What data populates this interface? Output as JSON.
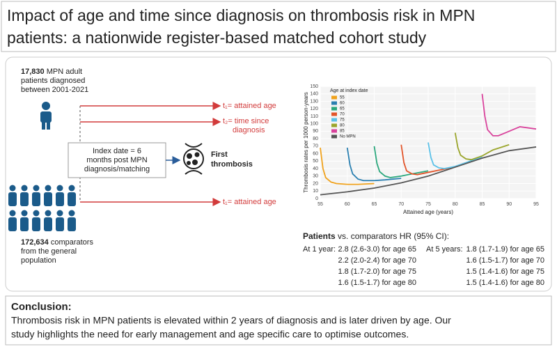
{
  "title": [
    "Impact of age and time since diagnosis on thrombosis risk in MPN",
    "patients: a nationwide register-based matched cohort study"
  ],
  "cohort": {
    "patients_count": "17,830",
    "patients_text": [
      "MPN adult",
      "patients diagnosed",
      "between 2001-2021"
    ],
    "comparators_count": "172,634",
    "comparators_text": [
      "comparators",
      "from the general",
      "population"
    ]
  },
  "timescales": {
    "top": "t₁= attained age",
    "middle": [
      "t₂= time since",
      "diagnosis"
    ],
    "bottom": "t₁= attained age"
  },
  "index_box": [
    "Index date = 6",
    "months post MPN",
    "diagnosis/matching"
  ],
  "outcome": [
    "First",
    "thrombosis"
  ],
  "chart_data": {
    "type": "line",
    "xlabel": "Attained age (years)",
    "ylabel": "Thrombosis rates per 1000 person-years",
    "xlim": [
      55,
      95
    ],
    "xticks": [
      55,
      60,
      65,
      70,
      75,
      80,
      85,
      90,
      95
    ],
    "ylim": [
      0,
      150
    ],
    "yticks": [
      0,
      10,
      20,
      30,
      40,
      50,
      60,
      70,
      80,
      90,
      100,
      110,
      120,
      130,
      140,
      150
    ],
    "grid": true,
    "legend_title": "Age at index date",
    "legend": "upper left",
    "series": [
      {
        "name": "55",
        "color": "#f0a21c",
        "x": [
          55,
          55.5,
          56,
          57,
          58,
          60,
          62,
          65
        ],
        "values": [
          68,
          40,
          28,
          22,
          20,
          19,
          19,
          20
        ]
      },
      {
        "name": "60",
        "color": "#2a7fb0",
        "x": [
          60,
          60.5,
          61,
          62,
          63,
          65,
          67,
          70
        ],
        "values": [
          68,
          45,
          33,
          26,
          24,
          24,
          25,
          27
        ]
      },
      {
        "name": "65",
        "color": "#2aa77c",
        "x": [
          65,
          65.5,
          66,
          67,
          68,
          70,
          72,
          75
        ],
        "values": [
          70,
          47,
          36,
          30,
          28,
          30,
          33,
          37
        ]
      },
      {
        "name": "70",
        "color": "#e2552b",
        "x": [
          70,
          70.5,
          71,
          72,
          73,
          75,
          77,
          80
        ],
        "values": [
          72,
          48,
          37,
          33,
          32,
          35,
          38,
          42
        ]
      },
      {
        "name": "75",
        "color": "#5bc1e8",
        "x": [
          75,
          75.5,
          76,
          77,
          78,
          80,
          82,
          85
        ],
        "values": [
          75,
          55,
          45,
          41,
          40,
          43,
          48,
          56
        ]
      },
      {
        "name": "80",
        "color": "#9aa52b",
        "x": [
          80,
          80.5,
          81,
          82,
          83,
          85,
          87,
          90
        ],
        "values": [
          88,
          68,
          58,
          53,
          52,
          57,
          65,
          72
        ]
      },
      {
        "name": "85",
        "color": "#d9439c",
        "x": [
          85,
          85.5,
          86,
          87,
          88,
          90,
          92,
          95
        ],
        "values": [
          140,
          110,
          92,
          84,
          84,
          90,
          96,
          93
        ]
      },
      {
        "name": "No MPN",
        "color": "#555555",
        "x": [
          55,
          60,
          65,
          70,
          75,
          80,
          85,
          90,
          95
        ],
        "values": [
          5,
          9,
          14,
          21,
          30,
          42,
          54,
          64,
          69
        ]
      }
    ]
  },
  "hr": {
    "heading_bold": "Patients",
    "heading": "vs. comparators HR (95% CI):",
    "columns": [
      {
        "label": "At 1 year:",
        "rows": [
          "2.8 (2.6-3.0) for age 65",
          "2.2 (2.0-2.4) for age 70",
          "1.8 (1.7-2.0) for age 75",
          "1.6 (1.5-1.7) for age 80"
        ]
      },
      {
        "label": "At 5 years:",
        "rows": [
          "1.8 (1.7-1.9) for age 65",
          "1.6 (1.5-1.7) for age 70",
          "1.5 (1.4-1.6) for age 75",
          "1.5 (1.4-1.6) for age 80"
        ]
      }
    ]
  },
  "conclusion": {
    "heading": "Conclusion:",
    "text": [
      "Thrombosis risk in MPN patients is elevated within 2 years of diagnosis and is later driven by age. Our",
      "study highlights the need for early management and age specific care to optimise outcomes."
    ]
  }
}
